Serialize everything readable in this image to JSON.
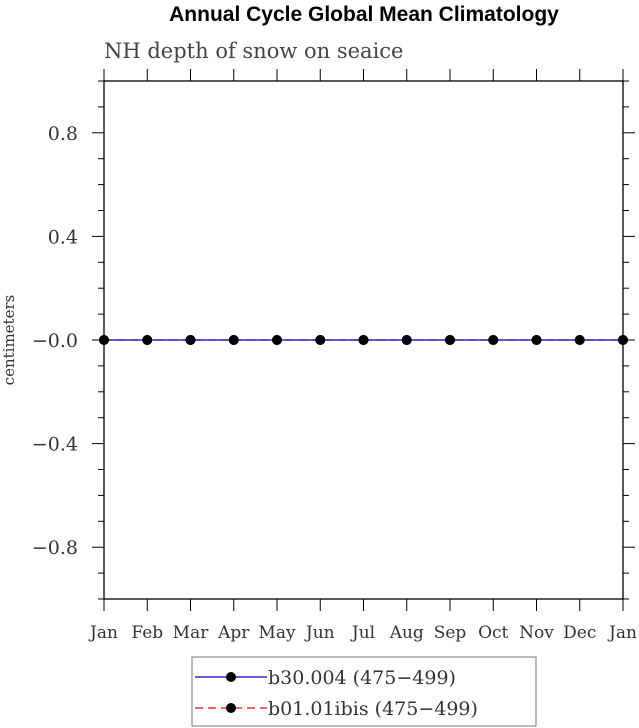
{
  "chart_data": {
    "type": "line",
    "title": "Annual Cycle Global Mean Climatology",
    "subtitle": "NH depth of snow on seaice",
    "xlabel": "",
    "ylabel": "centimeters",
    "categories": [
      "Jan",
      "Feb",
      "Mar",
      "Apr",
      "May",
      "Jun",
      "Jul",
      "Aug",
      "Sep",
      "Oct",
      "Nov",
      "Dec",
      "Jan"
    ],
    "ylim": [
      -1.0,
      1.0
    ],
    "yticks": [
      0.8,
      0.4,
      0.0,
      -0.4,
      -0.8
    ],
    "ytick_labels": [
      "0.8",
      "0.4",
      "−0.0",
      "−0.4",
      "−0.8"
    ],
    "grid": false,
    "legend_position": "bottom",
    "series": [
      {
        "name": "b30.004 (475−499)",
        "color": "#0000cc",
        "dash": "solid",
        "marker": "filled-circle",
        "values": [
          0,
          0,
          0,
          0,
          0,
          0,
          0,
          0,
          0,
          0,
          0,
          0,
          0
        ]
      },
      {
        "name": "b01.01ibis (475−499)",
        "color": "#ff0000",
        "dash": "dashed",
        "marker": "filled-circle",
        "values": [
          0,
          0,
          0,
          0,
          0,
          0,
          0,
          0,
          0,
          0,
          0,
          0,
          0
        ]
      }
    ]
  }
}
